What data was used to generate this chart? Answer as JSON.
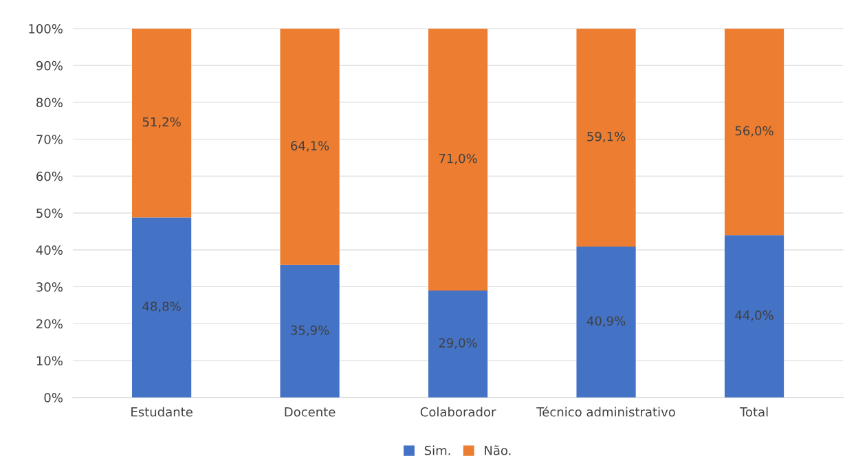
{
  "chart_data": {
    "type": "bar",
    "stacked": true,
    "categories": [
      "Estudante",
      "Docente",
      "Colaborador",
      "Técnico administrativo",
      "Total"
    ],
    "series": [
      {
        "name": "Sim.",
        "color": "#4472c4",
        "values": [
          48.8,
          35.9,
          29.0,
          40.9,
          44.0
        ],
        "value_labels": [
          "48,8%",
          "35,9%",
          "29,0%",
          "40,9%",
          "44,0%"
        ]
      },
      {
        "name": "Não.",
        "color": "#ed7d31",
        "values": [
          51.2,
          64.1,
          71.0,
          59.1,
          56.0
        ],
        "value_labels": [
          "51,2%",
          "64,1%",
          "71,0%",
          "59,1%",
          "56,0%"
        ]
      }
    ],
    "ylim": [
      0,
      100
    ],
    "yticks": [
      {
        "value": 0,
        "label": "0%"
      },
      {
        "value": 10,
        "label": "10%"
      },
      {
        "value": 20,
        "label": "20%"
      },
      {
        "value": 30,
        "label": "30%"
      },
      {
        "value": 40,
        "label": "40%"
      },
      {
        "value": 50,
        "label": "50%"
      },
      {
        "value": 60,
        "label": "60%"
      },
      {
        "value": 70,
        "label": "70%"
      },
      {
        "value": 80,
        "label": "80%"
      },
      {
        "value": 90,
        "label": "90%"
      },
      {
        "value": 100,
        "label": "100%"
      }
    ],
    "grid": "y",
    "legend": "bottom"
  }
}
